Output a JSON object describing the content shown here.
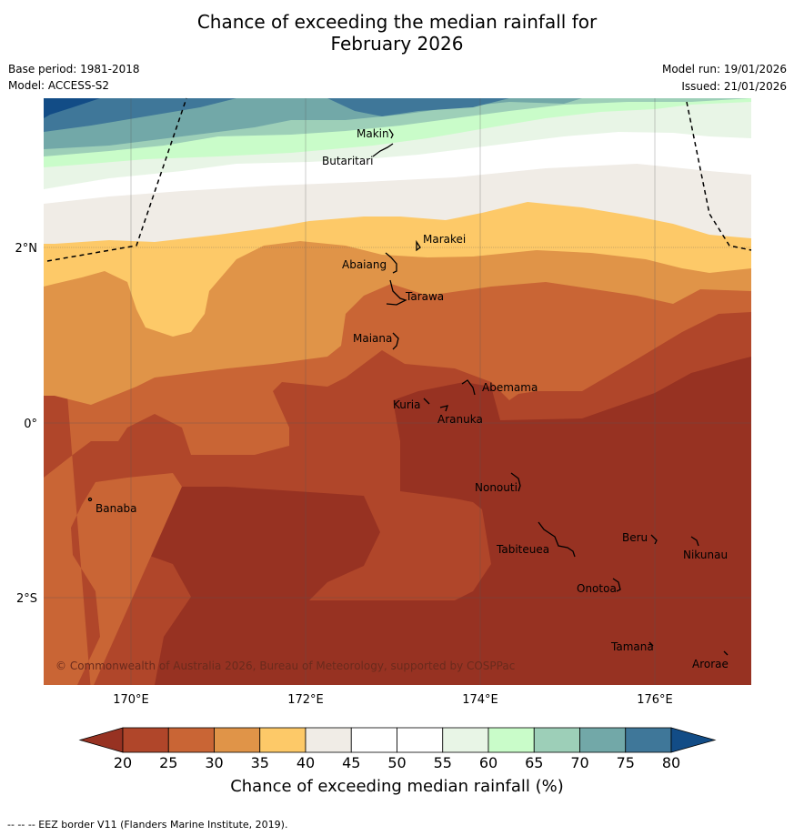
{
  "title_line1": "Chance of exceeding the median rainfall for",
  "title_line2": "February 2026",
  "base_period": "Base period: 1981-2018",
  "model": "Model: ACCESS-S2",
  "model_run": "Model run: 19/01/2026",
  "issued": "Issued: 21/01/2026",
  "copyright": "© Commonwealth of Australia 2026, Bureau of Meteorology, supported by COSPPac",
  "lon_labels": [
    "170°E",
    "172°E",
    "174°E",
    "176°E"
  ],
  "lat_labels": [
    "2°N",
    "0°",
    "2°S"
  ],
  "places": [
    "Makin",
    "Butaritari",
    "Marakei",
    "Abaiang",
    "Tarawa",
    "Maiana",
    "Abemama",
    "Kuria",
    "Aranuka",
    "Nonouti",
    "Banaba",
    "Tabiteuea",
    "Beru",
    "Nikunau",
    "Onotoa",
    "Tamana",
    "Arorae"
  ],
  "colorbar": {
    "ticks": [
      "20",
      "25",
      "30",
      "35",
      "40",
      "45",
      "50",
      "55",
      "60",
      "65",
      "70",
      "75",
      "80"
    ],
    "colors": [
      "#b0462a",
      "#c96535",
      "#e09448",
      "#fdc968",
      "#f0ece6",
      "#ffffff",
      "#ffffff",
      "#e8f5e6",
      "#c9fcc9",
      "#9dcfb8",
      "#72a8a8",
      "#3f7799"
    ],
    "under_color": "#973222",
    "over_color": "#124c86",
    "title": "Chance of exceeding median rainfall (%)"
  },
  "footnote": "--  --  -- EEZ border V11 (Flanders Marine Institute, 2019)."
}
